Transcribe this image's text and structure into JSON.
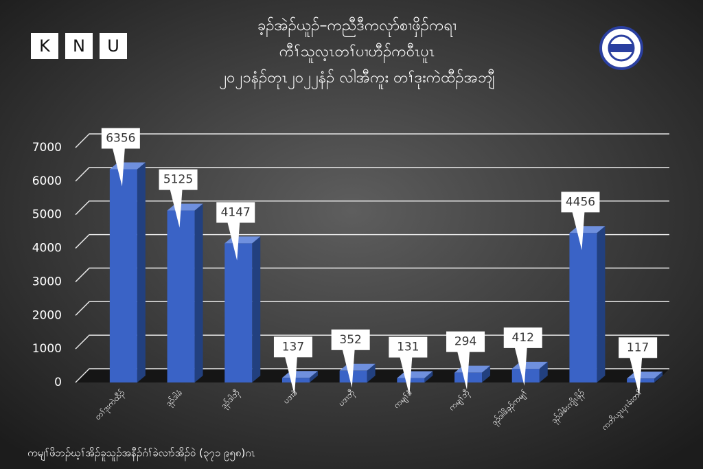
{
  "brand": [
    "K",
    "N",
    "U"
  ],
  "chart_data": {
    "type": "bar",
    "title": [
      "ခ့ၣ်အဲၣ်ယူၣ်–ကညီဒီကလုာ်စၢဖှိၣ်ကရၢ",
      "ကီၢ်သူလ့ၤတၢ်ပၢဟီၣ်ကဝီၤပူၤ",
      "၂၀၂၁နံၣ်တုၤ၂၀၂၂နံၣ် လါအီကူး တၢ်ဒုးကဲထီၣ်အဘျီ"
    ],
    "categories": [
      "တၢ်ဒုးကဲထီၣ်",
      "ဒုၣ်ဒါခံ",
      "ဒုၣ်ဒါဘှီ",
      "ပဒၢခံ",
      "ပဒၢဘှီ",
      "ကမျၢ်ခံ",
      "ကမျၢ်ဘှီ",
      "ဒုၣ်ဒါဖိခ့ၣ်ကမျၢ်",
      "ဒုၣ်ဒါစံးကျိၤဖှိၣ်",
      "ကဘိယူၤပှၤခံးတၢ်"
    ],
    "values": [
      6356,
      5125,
      4147,
      137,
      352,
      131,
      294,
      412,
      4456,
      117
    ],
    "color": "#3a63c6",
    "ylim": [
      0,
      7000
    ],
    "yticks": [
      0,
      1000,
      2000,
      3000,
      4000,
      5000,
      6000,
      7000
    ],
    "grid": true,
    "note": "ကမျၢ်ဖိဘၣ်ဃ့ၢ်အိၣ်ခူသူၣ်အနီၣ်ဂံၢ်ခဲလၢာ်အိၣ်ဝဲ (၃၇၁ ၉၅၈)ဂၤ"
  }
}
